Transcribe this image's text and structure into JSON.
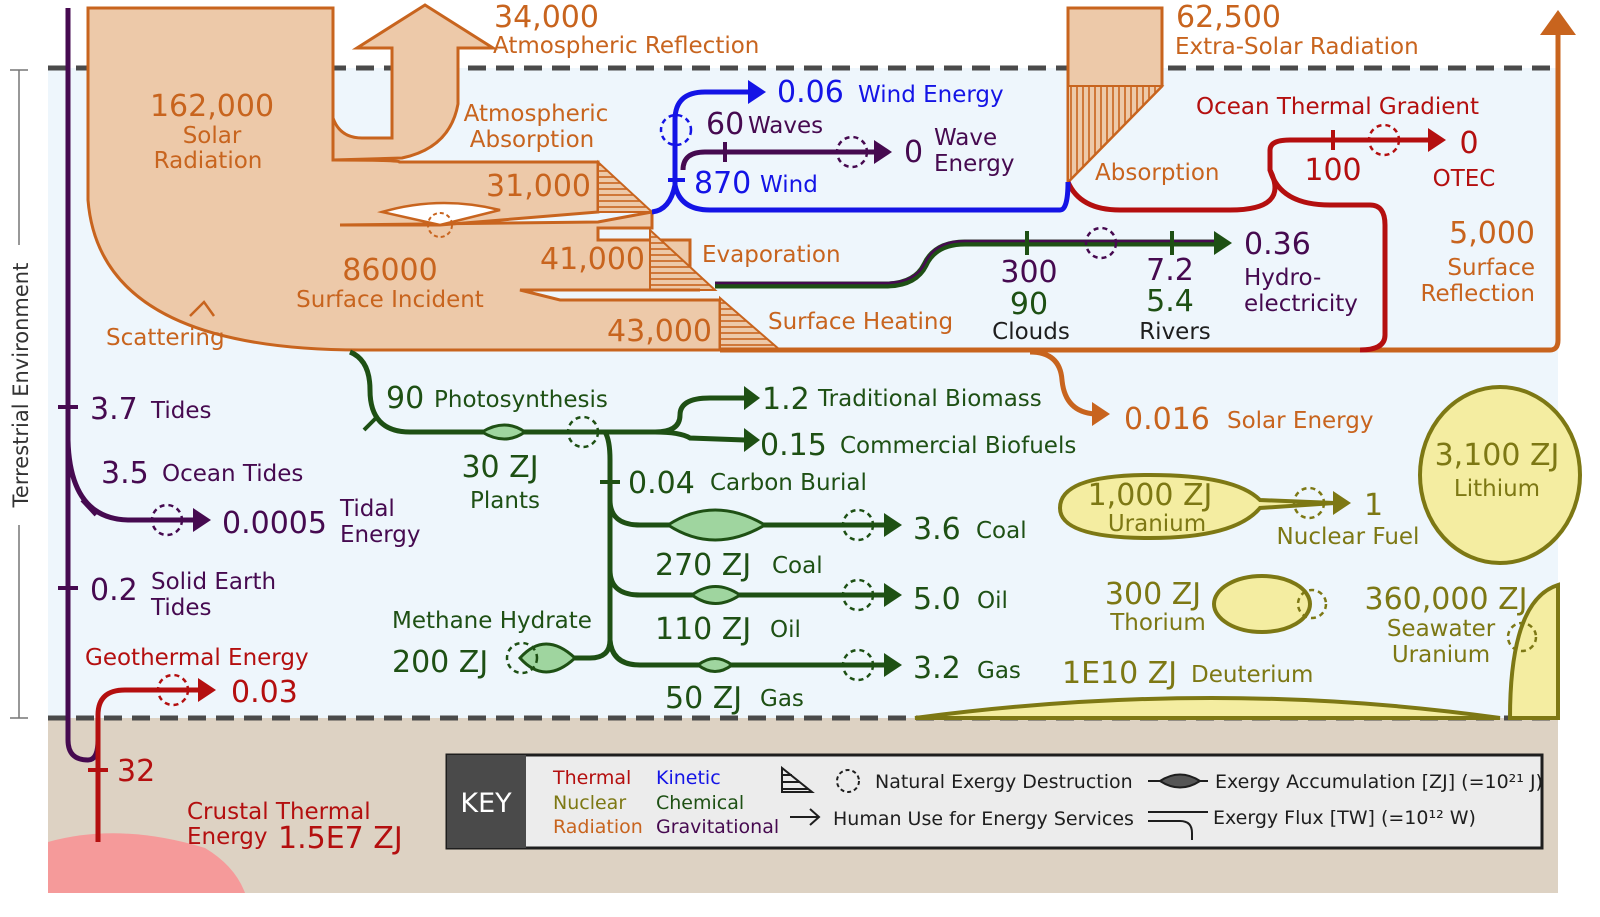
{
  "sidebar": {
    "label": "Terrestrial Environment"
  },
  "colors": {
    "solar": "#c8641e",
    "solar_fill": "#edc9a9",
    "thermal": "#b40f0f",
    "kinetic": "#1414e6",
    "chemical": "#1e5014",
    "chemical_fill": "#9fd59f",
    "gravitational": "#460a50",
    "nuclear": "#7d7814",
    "nuclear_fill": "#f4eda1",
    "environment_bg": "#eef6fc",
    "crust_bg": "#ddd2c3",
    "crust_core": "#f59a9a"
  },
  "solar": {
    "atmospheric_reflection": {
      "value": "34,000",
      "label": "Atmospheric Reflection"
    },
    "extra_solar": {
      "value": "62,500",
      "label": "Extra-Solar Radiation"
    },
    "solar_radiation": {
      "value": "162,000",
      "label_1": "Solar",
      "label_2": "Radiation"
    },
    "atmospheric_absorption": {
      "label_1": "Atmospheric",
      "label_2": "Absorption",
      "value": "31,000"
    },
    "surface_incident": {
      "value": "86000",
      "label": "Surface Incident"
    },
    "evaporation": {
      "value": "41,000",
      "label": "Evaporation"
    },
    "surface_heating": {
      "value": "43,000",
      "label": "Surface Heating"
    },
    "scattering": "Scattering",
    "absorption": "Absorption",
    "surface_reflection": {
      "value": "5,000",
      "label_1": "Surface",
      "label_2": "Reflection"
    },
    "solar_energy": {
      "value": "0.016",
      "label": "Solar Energy"
    }
  },
  "kinetic": {
    "wind_energy": {
      "value": "0.06",
      "label": "Wind Energy"
    },
    "wind": {
      "value": "870",
      "label": "Wind"
    }
  },
  "waves": {
    "value": "60",
    "label": "Waves",
    "wave_energy_value": "0",
    "wave_energy_label_1": "Wave",
    "wave_energy_label_2": "Energy"
  },
  "ocean": {
    "title": "Ocean Thermal Gradient",
    "value": "100",
    "otec_value": "0",
    "otec_label": "OTEC"
  },
  "hydro": {
    "clouds_1": "300",
    "clouds_2": "90",
    "clouds_label": "Clouds",
    "rivers_1": "7.2",
    "rivers_2": "5.4",
    "rivers_label": "Rivers",
    "value": "0.36",
    "label_1": "Hydro-",
    "label_2": "electricity"
  },
  "tides": {
    "tides": {
      "value": "3.7",
      "label": "Tides"
    },
    "ocean_tides": {
      "value": "3.5",
      "label": "Ocean Tides"
    },
    "tidal_energy": {
      "value": "0.0005",
      "label_1": "Tidal",
      "label_2": "Energy"
    },
    "solid_earth": {
      "value": "0.2",
      "label_1": "Solid Earth",
      "label_2": "Tides"
    }
  },
  "geothermal": {
    "label": "Geothermal Energy",
    "value": "0.03",
    "crust_value": "32",
    "crust_label_1": "Crustal Thermal",
    "crust_label_2": "Energy",
    "crust_amount": "1.5E7 ZJ"
  },
  "chemical": {
    "photosynthesis": {
      "value": "90",
      "label": "Photosynthesis"
    },
    "plants": {
      "value": "30 ZJ",
      "label": "Plants"
    },
    "traditional_biomass": {
      "value": "1.2",
      "label": "Traditional Biomass"
    },
    "commercial_biofuels": {
      "value": "0.15",
      "label": "Commercial Biofuels"
    },
    "carbon_burial": {
      "value": "0.04",
      "label": "Carbon Burial"
    },
    "coal_use": {
      "value": "3.6",
      "label": "Coal"
    },
    "coal_stock": {
      "value": "270 ZJ",
      "label": "Coal"
    },
    "oil_use": {
      "value": "5.0",
      "label": "Oil"
    },
    "oil_stock": {
      "value": "110 ZJ",
      "label": "Oil"
    },
    "gas_use": {
      "value": "3.2",
      "label": "Gas"
    },
    "gas_stock": {
      "value": "50 ZJ",
      "label": "Gas"
    },
    "methane": {
      "label": "Methane Hydrate",
      "value": "200 ZJ"
    }
  },
  "nuclear": {
    "lithium": {
      "value": "3,100 ZJ",
      "label": "Lithium"
    },
    "uranium": {
      "value": "1,000 ZJ",
      "label": "Uranium"
    },
    "nuclear_fuel": {
      "value": "1",
      "label": "Nuclear Fuel"
    },
    "thorium": {
      "value": "300 ZJ",
      "label": "Thorium"
    },
    "seawater_uranium": {
      "value": "360,000 ZJ",
      "label_1": "Seawater",
      "label_2": "Uranium"
    },
    "deuterium": {
      "value": "1E10 ZJ",
      "label": "Deuterium"
    }
  },
  "key": {
    "title": "KEY",
    "thermal": "Thermal",
    "nuclear": "Nuclear",
    "radiation": "Radiation",
    "kinetic": "Kinetic",
    "chemical": "Chemical",
    "gravitational": "Gravitational",
    "destruction": "Natural Exergy Destruction",
    "human_use": "Human Use for Energy Services",
    "accumulation": "Exergy Accumulation [ZJ] (=10²¹ J)",
    "flux": "Exergy Flux [TW] (=10¹² W)"
  }
}
